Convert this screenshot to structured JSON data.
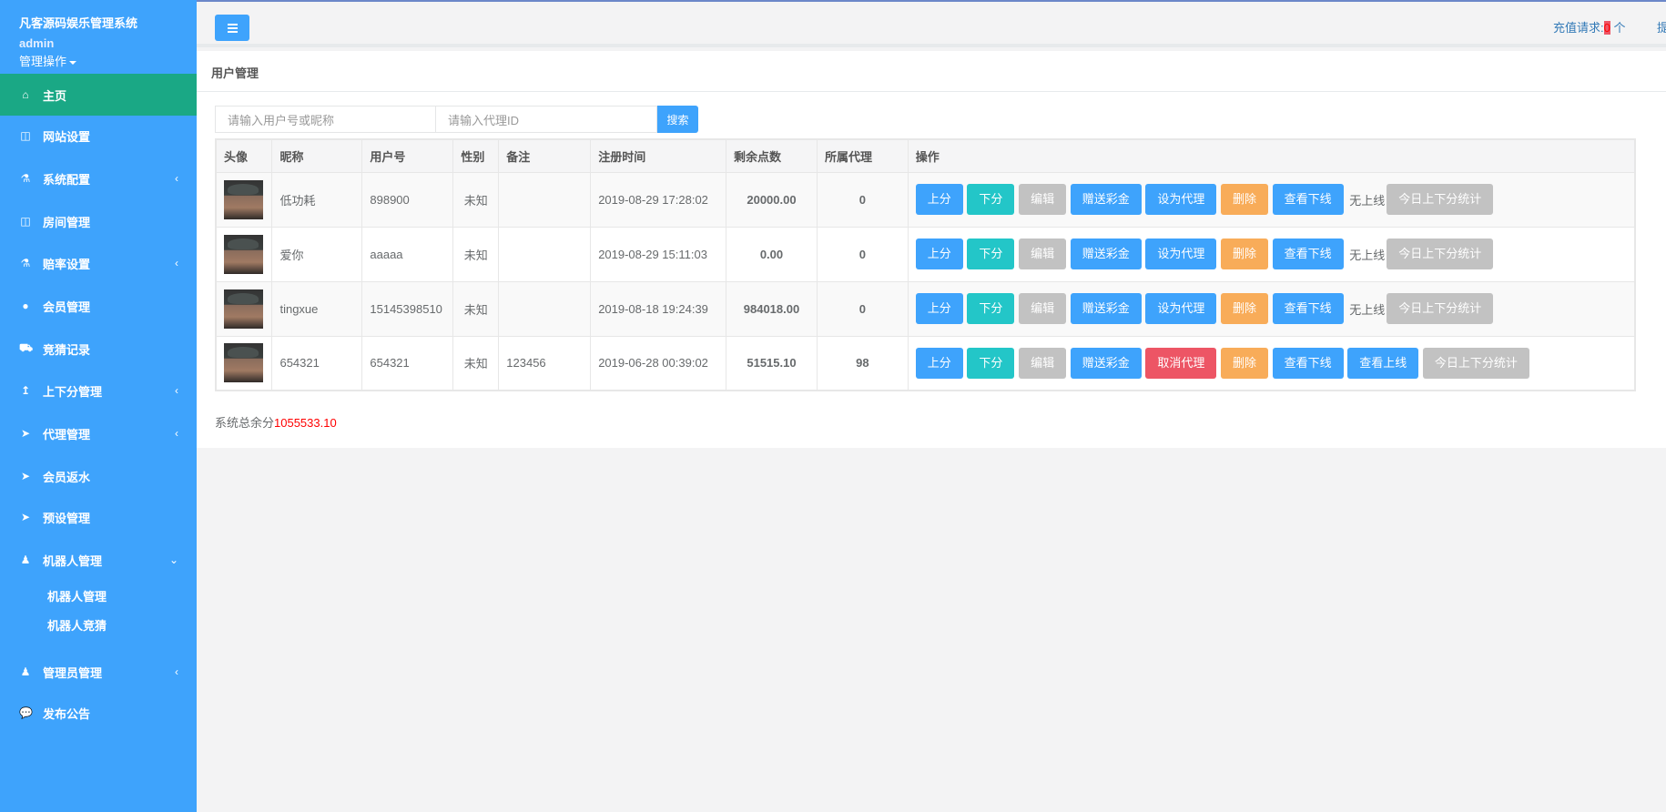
{
  "sidebar": {
    "brand": "凡客源码娱乐管理系统",
    "user": "admin",
    "ops_label": "管理操作",
    "items": [
      {
        "label": "主页",
        "icon": "home-icon",
        "glyph": "⌂"
      },
      {
        "label": "网站设置",
        "icon": "columns-icon",
        "glyph": "◫"
      },
      {
        "label": "系统配置",
        "icon": "flask-icon",
        "glyph": "⚗"
      },
      {
        "label": "房间管理",
        "icon": "columns-icon",
        "glyph": "◫"
      },
      {
        "label": "赔率设置",
        "icon": "flask-icon",
        "glyph": "⚗"
      },
      {
        "label": "会员管理",
        "icon": "user-icon",
        "glyph": "●"
      },
      {
        "label": "竞猜记录",
        "icon": "car-icon",
        "glyph": "⛟"
      },
      {
        "label": "上下分管理",
        "icon": "level-up-icon",
        "glyph": "↥"
      },
      {
        "label": "代理管理",
        "icon": "paper-plane-icon",
        "glyph": "➤"
      },
      {
        "label": "会员返水",
        "icon": "paper-plane-icon",
        "glyph": "➤"
      },
      {
        "label": "预设管理",
        "icon": "paper-plane-icon",
        "glyph": "➤"
      },
      {
        "label": "机器人管理",
        "icon": "male-icon",
        "glyph": "♟"
      },
      {
        "label": "管理员管理",
        "icon": "male-icon",
        "glyph": "♟"
      },
      {
        "label": "发布公告",
        "icon": "comments-icon",
        "glyph": "💬"
      }
    ],
    "sub_items": [
      "机器人管理",
      "机器人竞猜"
    ],
    "arrow_collapsed": "‹",
    "arrow_expanded": "⌄"
  },
  "header": {
    "recharge_label": "充值请求:",
    "recharge_count": "0",
    "recharge_unit": " 个",
    "cutoff": "提"
  },
  "panel": {
    "title": "用户管理",
    "search_user_placeholder": "请输入用户号或昵称",
    "search_agent_placeholder": "请输入代理ID",
    "search_button": "搜索",
    "columns": [
      "头像",
      "昵称",
      "用户号",
      "性别",
      "备注",
      "注册时间",
      "剩余点数",
      "所属代理",
      "操作"
    ],
    "rows": [
      {
        "nickname": "低功耗",
        "uid": "898900",
        "gender": "未知",
        "note": "",
        "reg_time": "2019-08-29 17:28:02",
        "points": "20000.00",
        "agent": "0",
        "is_agent": false
      },
      {
        "nickname": "爱你",
        "uid": "aaaaa",
        "gender": "未知",
        "note": "",
        "reg_time": "2019-08-29 15:11:03",
        "points": "0.00",
        "agent": "0",
        "is_agent": false
      },
      {
        "nickname": "tingxue",
        "uid": "15145398510",
        "gender": "未知",
        "note": "",
        "reg_time": "2019-08-18 19:24:39",
        "points": "984018.00",
        "agent": "0",
        "is_agent": false
      },
      {
        "nickname": "654321",
        "uid": "654321",
        "gender": "未知",
        "note": "123456",
        "reg_time": "2019-06-28 00:39:02",
        "points": "51515.10",
        "agent": "98",
        "is_agent": true
      }
    ],
    "actions": {
      "up": "上分",
      "down": "下分",
      "edit": "编辑",
      "gift": "赠送彩金",
      "set_agent": "设为代理",
      "cancel_agent": "取消代理",
      "delete": "删除",
      "view_down": "查看下线",
      "no_upline": "无上线",
      "view_up": "查看上线",
      "today_stats": "今日上下分统计"
    },
    "total_label": "系统总余分",
    "total_value": "1055533.10"
  },
  "colors": {
    "sidebar": "#3ea3fc",
    "active": "#1aa885",
    "primary": "#3ea3fc",
    "teal": "#23c6c8",
    "gray": "#c2c2c2",
    "orange": "#f8ac59",
    "danger": "#ed5565"
  }
}
